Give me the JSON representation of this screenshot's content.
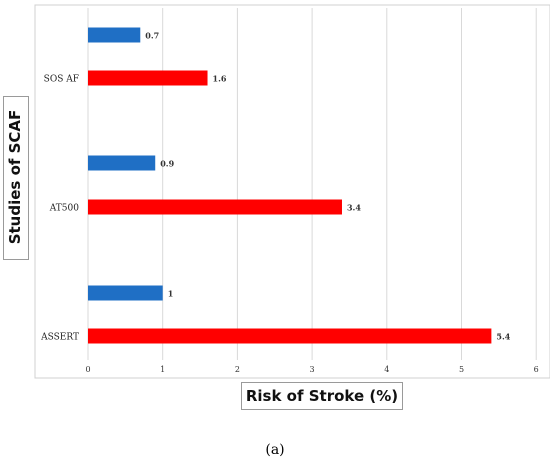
{
  "chart_data": {
    "type": "bar",
    "orientation": "horizontal",
    "ylabel": "Studies of SCAF",
    "xlabel": "Risk of Stroke (%)",
    "xlim": [
      0,
      6
    ],
    "x_ticks": [
      "0",
      "1",
      "2",
      "3",
      "4",
      "5",
      "6"
    ],
    "grid": "vertical",
    "groups": [
      {
        "label": "SOS AF",
        "bars": [
          {
            "value": 0.7,
            "label": "0.7",
            "color": "#1f6fc5"
          },
          {
            "value": 1.6,
            "label": "1.6",
            "color": "#ff0000"
          }
        ]
      },
      {
        "label": "AT500",
        "bars": [
          {
            "value": 0.9,
            "label": "0.9",
            "color": "#1f6fc5"
          },
          {
            "value": 3.4,
            "label": "3.4",
            "color": "#ff0000"
          }
        ]
      },
      {
        "label": "ASSERT",
        "bars": [
          {
            "value": 1.0,
            "label": "1",
            "color": "#1f6fc5"
          },
          {
            "value": 5.4,
            "label": "5.4",
            "color": "#ff0000"
          }
        ]
      }
    ]
  },
  "caption": "(a)"
}
